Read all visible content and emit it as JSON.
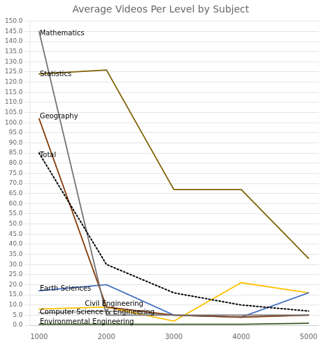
{
  "chart_data": {
    "type": "line",
    "title": "Average Videos Per Level by Subject",
    "x": [
      1000,
      2000,
      3000,
      4000,
      5000
    ],
    "series": [
      {
        "name": "Mathematics",
        "color": "#767171",
        "line_style": "solid",
        "values": [
          145,
          5,
          5,
          5,
          5
        ]
      },
      {
        "name": "Statistics",
        "color": "#7F6000",
        "line_style": "solid",
        "values": [
          124,
          126,
          67,
          67,
          33
        ]
      },
      {
        "name": "Geography",
        "color": "#843C0C",
        "line_style": "solid",
        "values": [
          102,
          9,
          5,
          4,
          5
        ]
      },
      {
        "name": "Total",
        "color": "#000000",
        "line_style": "dotted",
        "values": [
          85,
          30,
          16,
          10,
          7
        ]
      },
      {
        "name": "Earth Sciences",
        "color": "#4472C4",
        "line_style": "solid",
        "values": [
          17,
          20,
          5,
          4,
          16
        ]
      },
      {
        "name": "Civil Engineering",
        "color": "#FFC000",
        "line_style": "solid",
        "values": [
          8,
          9,
          2,
          21,
          16
        ]
      },
      {
        "name": "Computer Science & Engineering",
        "color": "#A6A6A6",
        "line_style": "solid",
        "values": [
          6,
          7,
          5,
          4,
          5
        ]
      },
      {
        "name": "Environmental Engineering",
        "color": "#375623",
        "line_style": "solid",
        "values": [
          0.5,
          0.5,
          0.5,
          0.5,
          1.0
        ]
      }
    ],
    "annotations": [
      {
        "text": "Mathematics",
        "x": 1010,
        "y": 144
      },
      {
        "text": "Statistics",
        "x": 1010,
        "y": 124
      },
      {
        "text": "Geography",
        "x": 1010,
        "y": 103
      },
      {
        "text": "Total",
        "x": 1010,
        "y": 84
      },
      {
        "text": "Earth Sciences",
        "x": 1010,
        "y": 18
      },
      {
        "text": "Civil Engineering",
        "x": 1680,
        "y": 10.5
      },
      {
        "text": "Computer Science & Engineering",
        "x": 1010,
        "y": 6.5
      },
      {
        "text": "Environmental Engineering",
        "x": 1010,
        "y": 1.5
      }
    ],
    "xlim": [
      870,
      5150
    ],
    "xticks": [
      1000,
      2000,
      3000,
      4000,
      5000
    ],
    "ylim": [
      0,
      150
    ],
    "yticks": [
      {
        "value": 0,
        "label": "0.0"
      },
      {
        "value": 5,
        "label": "5.0"
      },
      {
        "value": 10,
        "label": "10.0"
      },
      {
        "value": 15,
        "label": "15.0"
      },
      {
        "value": 20,
        "label": "20.0"
      },
      {
        "value": 25,
        "label": "25.0"
      },
      {
        "value": 30,
        "label": "30.0"
      },
      {
        "value": 35,
        "label": "35.0"
      },
      {
        "value": 40,
        "label": "40.0"
      },
      {
        "value": 45,
        "label": "45.0"
      },
      {
        "value": 50,
        "label": "50.0"
      },
      {
        "value": 55,
        "label": "55.0"
      },
      {
        "value": 60,
        "label": "60.0"
      },
      {
        "value": 65,
        "label": "65.0"
      },
      {
        "value": 70,
        "label": "70.0"
      },
      {
        "value": 75,
        "label": "75.0"
      },
      {
        "value": 80,
        "label": "80.0"
      },
      {
        "value": 85,
        "label": "85.0"
      },
      {
        "value": 90,
        "label": "90.0"
      },
      {
        "value": 95,
        "label": "95.0"
      },
      {
        "value": 100,
        "label": "100.0"
      },
      {
        "value": 105,
        "label": "105.0"
      },
      {
        "value": 110,
        "label": "110.0"
      },
      {
        "value": 115,
        "label": "115.0"
      },
      {
        "value": 120,
        "label": "120.0"
      },
      {
        "value": 125,
        "label": "125.0"
      },
      {
        "value": 130,
        "label": "130.0"
      },
      {
        "value": 135,
        "label": "135.0"
      },
      {
        "value": 140,
        "label": "140.0"
      },
      {
        "value": 145,
        "label": "145.0"
      },
      {
        "value": 150,
        "label": "150.0"
      }
    ],
    "grid": "y"
  }
}
